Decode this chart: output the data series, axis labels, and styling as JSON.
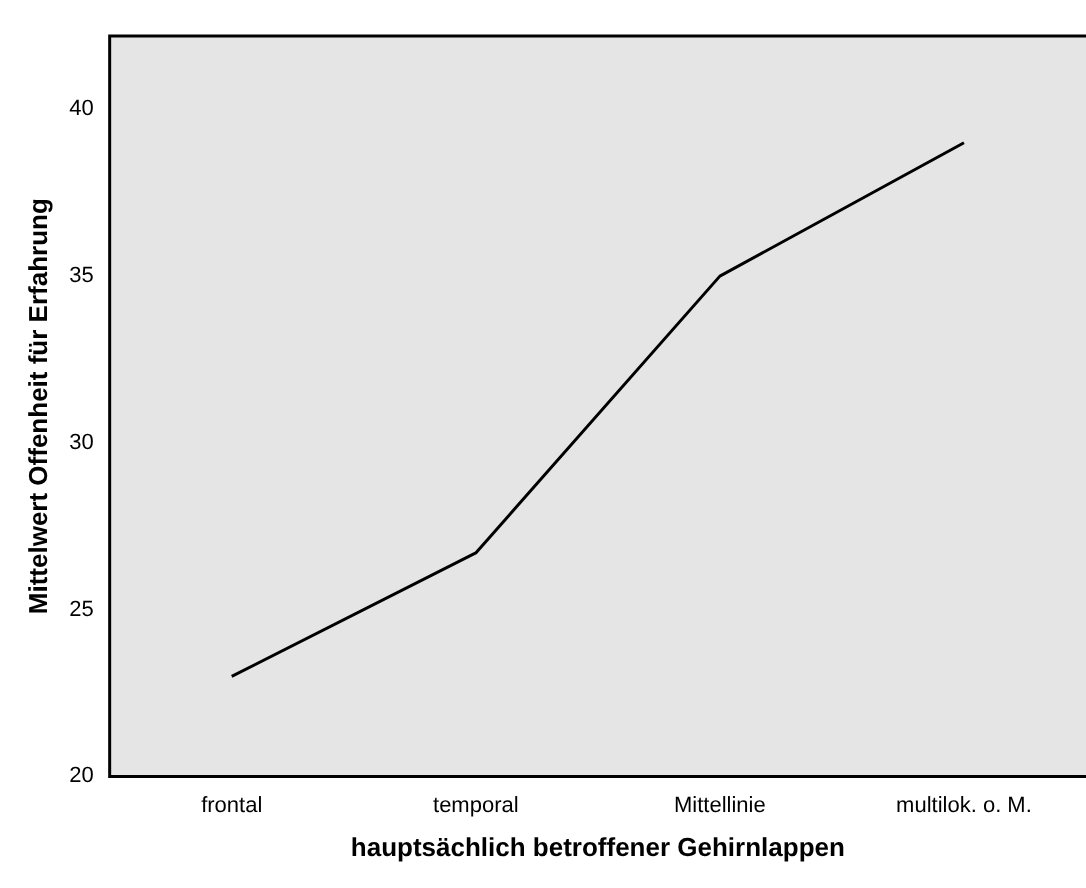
{
  "chart_data": {
    "type": "line",
    "xlabel": "hauptsächlich betroffener Gehirnlappen",
    "ylabel": "Mittelwert Offenheit für Erfahrung",
    "categories": [
      "frontal",
      "temporal",
      "Mittellinie",
      "multilok. o. M."
    ],
    "series": [
      {
        "color": "#000000",
        "values": [
          23.0,
          26.7,
          35.0,
          39.0
        ]
      }
    ],
    "ylim": [
      20,
      42.2
    ],
    "yticks": [
      20,
      25,
      30,
      35,
      40
    ],
    "grid": false,
    "legend": false,
    "marker": "none",
    "line_style": "solid"
  }
}
